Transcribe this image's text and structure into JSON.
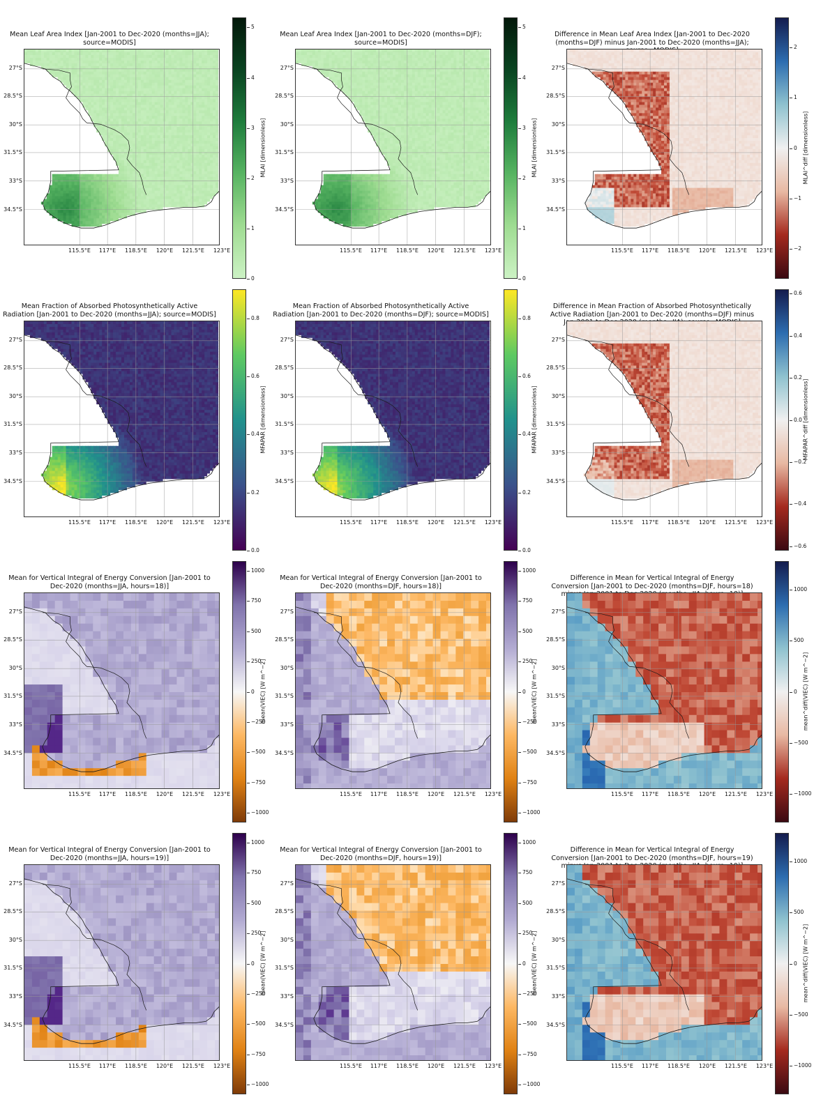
{
  "figure": {
    "lat_labels": [
      "27°S",
      "28.5°S",
      "30°S",
      "31.5°S",
      "33°S",
      "34.5°S"
    ],
    "lon_labels": [
      "115.5°E",
      "117°E",
      "118.5°E",
      "120°E",
      "121.5°E",
      "123°E"
    ],
    "panels": [
      {
        "id": "lai-jja",
        "title": "Mean Leaf Area Index [Jan-2001 to Dec-2020 (months=JJA);\nsource=MODIS]",
        "colorbar": {
          "label": "MLAI [dimensionless]",
          "ticks": [
            "0",
            "1",
            "2",
            "3",
            "4",
            "5"
          ],
          "range": [
            0,
            5.2
          ],
          "colors": [
            "#ccf2c4",
            "#9fdc92",
            "#58b462",
            "#1f7d3d",
            "#0a4421",
            "#03180a"
          ]
        },
        "style": "lai",
        "season": "JJA"
      },
      {
        "id": "lai-djf",
        "title": "Mean Leaf Area Index [Jan-2001 to Dec-2020 (months=DJF);\nsource=MODIS]",
        "colorbar": {
          "label": "MLAI [dimensionless]",
          "ticks": [
            "0",
            "1",
            "2",
            "3",
            "4",
            "5"
          ],
          "range": [
            0,
            5.2
          ],
          "colors": [
            "#ccf2c4",
            "#9fdc92",
            "#58b462",
            "#1f7d3d",
            "#0a4421",
            "#03180a"
          ]
        },
        "style": "lai",
        "season": "DJF"
      },
      {
        "id": "lai-diff",
        "title": "Difference in Mean Leaf Area Index [Jan-2001 to Dec-2020\n(months=DJF) minus Jan-2001 to Dec-2020 (months=JJA);\nsource=MODIS]",
        "colorbar": {
          "label": "MLAI^diff [dimensionless]",
          "ticks": [
            "−2",
            "−1",
            "0",
            "1",
            "2"
          ],
          "range": [
            -2.6,
            2.6
          ],
          "colors": [
            "#3b0a12",
            "#a52a1e",
            "#e8b9a3",
            "#f0f0f0",
            "#8fc2cf",
            "#2d6db0",
            "#141c4e"
          ]
        },
        "style": "diff-green",
        "season": "DIFF"
      },
      {
        "id": "fapar-jja",
        "title": "Mean Fraction of Absorbed Photosynthetically Active\nRadiation [Jan-2001 to Dec-2020 (months=JJA); source=MODIS]",
        "colorbar": {
          "label": "MFAPAR [dimensionless]",
          "ticks": [
            "0.0",
            "0.2",
            "0.4",
            "0.6",
            "0.8"
          ],
          "range": [
            0,
            0.9
          ],
          "colors": [
            "#440154",
            "#3b528b",
            "#21918c",
            "#5ec962",
            "#fde725"
          ]
        },
        "style": "fapar",
        "season": "JJA"
      },
      {
        "id": "fapar-djf",
        "title": "Mean Fraction of Absorbed Photosynthetically Active\nRadiation [Jan-2001 to Dec-2020 (months=DJF); source=MODIS]",
        "colorbar": {
          "label": "MFAPAR [dimensionless]",
          "ticks": [
            "0.0",
            "0.2",
            "0.4",
            "0.6",
            "0.8"
          ],
          "range": [
            0,
            0.9
          ],
          "colors": [
            "#440154",
            "#3b528b",
            "#21918c",
            "#5ec962",
            "#fde725"
          ]
        },
        "style": "fapar",
        "season": "DJF"
      },
      {
        "id": "fapar-diff",
        "title": "Difference in Mean Fraction of Absorbed Photosynthetically\nActive Radiation [Jan-2001 to Dec-2020 (months=DJF) minus\nJan-2001 to Dec-2020 (months=JJA); source=MODIS]",
        "colorbar": {
          "label": "MFAPAR^diff [dimensionless]",
          "ticks": [
            "−0.6",
            "−0.4",
            "−0.2",
            "0.0",
            "0.2",
            "0.4",
            "0.6"
          ],
          "range": [
            -0.62,
            0.62
          ],
          "colors": [
            "#3b0a12",
            "#a52a1e",
            "#e8b9a3",
            "#f0f0f0",
            "#8fc2cf",
            "#2d6db0",
            "#141c4e"
          ]
        },
        "style": "diff-fapar",
        "season": "DIFF"
      },
      {
        "id": "viec18-jja",
        "title": "Mean for Vertical Integral of Energy Conversion [Jan-2001 to\nDec-2020 (months=JJA, hours=18)]",
        "colorbar": {
          "label": "mean(VIEC) [W m^−2]",
          "ticks": [
            "−1000",
            "−750",
            "−500",
            "−250",
            "0",
            "250",
            "500",
            "750",
            "1000"
          ],
          "range": [
            -1080,
            1080
          ],
          "colors": [
            "#7f3b08",
            "#e08214",
            "#fdb863",
            "#f7f7f7",
            "#b2abd2",
            "#8073ac",
            "#2d004b"
          ]
        },
        "style": "viec-jja",
        "season": "JJA"
      },
      {
        "id": "viec18-djf",
        "title": "Mean for Vertical Integral of Energy Conversion [Jan-2001 to\nDec-2020 (months=DJF, hours=18)]",
        "colorbar": {
          "label": "mean(VIEC) [W m^−2]",
          "ticks": [
            "−1000",
            "−750",
            "−500",
            "−250",
            "0",
            "250",
            "500",
            "750",
            "1000"
          ],
          "range": [
            -1080,
            1080
          ],
          "colors": [
            "#7f3b08",
            "#e08214",
            "#fdb863",
            "#f7f7f7",
            "#b2abd2",
            "#8073ac",
            "#2d004b"
          ]
        },
        "style": "viec-djf",
        "season": "DJF"
      },
      {
        "id": "viec18-diff",
        "title": "Difference in Mean for Vertical Integral of Energy\nConversion [Jan-2001 to Dec-2020 (months=DJF, hours=18)\nminus Jan-2001 to Dec-2020 (months=JJA, hours=18)]",
        "colorbar": {
          "label": "mean^diff(VIEC) [W m^−2]",
          "ticks": [
            "−1000",
            "−500",
            "0",
            "500",
            "1000"
          ],
          "range": [
            -1280,
            1280
          ],
          "colors": [
            "#3b0a12",
            "#a52a1e",
            "#e8b9a3",
            "#f0f0f0",
            "#8fc2cf",
            "#2d6db0",
            "#141c4e"
          ]
        },
        "style": "viec-diff",
        "season": "DIFF"
      },
      {
        "id": "viec19-jja",
        "title": "Mean for Vertical Integral of Energy Conversion [Jan-2001 to\nDec-2020 (months=JJA, hours=19)]",
        "colorbar": {
          "label": "mean(VIEC) [W m^−2]",
          "ticks": [
            "−1000",
            "−750",
            "−500",
            "−250",
            "0",
            "250",
            "500",
            "750",
            "1000"
          ],
          "range": [
            -1080,
            1080
          ],
          "colors": [
            "#7f3b08",
            "#e08214",
            "#fdb863",
            "#f7f7f7",
            "#b2abd2",
            "#8073ac",
            "#2d004b"
          ]
        },
        "style": "viec-jja",
        "season": "JJA"
      },
      {
        "id": "viec19-djf",
        "title": "Mean for Vertical Integral of Energy Conversion [Jan-2001 to\nDec-2020 (months=DJF, hours=19)]",
        "colorbar": {
          "label": "mean(VIEC) [W m^−2]",
          "ticks": [
            "−1000",
            "−750",
            "−500",
            "−250",
            "0",
            "250",
            "500",
            "750",
            "1000"
          ],
          "range": [
            -1080,
            1080
          ],
          "colors": [
            "#7f3b08",
            "#e08214",
            "#fdb863",
            "#f7f7f7",
            "#b2abd2",
            "#8073ac",
            "#2d004b"
          ]
        },
        "style": "viec-djf",
        "season": "DJF"
      },
      {
        "id": "viec19-diff",
        "title": "Difference in Mean for Vertical Integral of Energy\nConversion [Jan-2001 to Dec-2020 (months=DJF, hours=19)\nminus Jan-2001 to Dec-2020 (months=JJA, hours=19)]",
        "colorbar": {
          "label": "mean^diff(VIEC) [W m^−2]",
          "ticks": [
            "−1000",
            "−500",
            "0",
            "500",
            "1000"
          ],
          "range": [
            -1280,
            1280
          ],
          "colors": [
            "#3b0a12",
            "#a52a1e",
            "#e8b9a3",
            "#f0f0f0",
            "#8fc2cf",
            "#2d6db0",
            "#141c4e"
          ]
        },
        "style": "viec-diff",
        "season": "DIFF"
      }
    ]
  }
}
